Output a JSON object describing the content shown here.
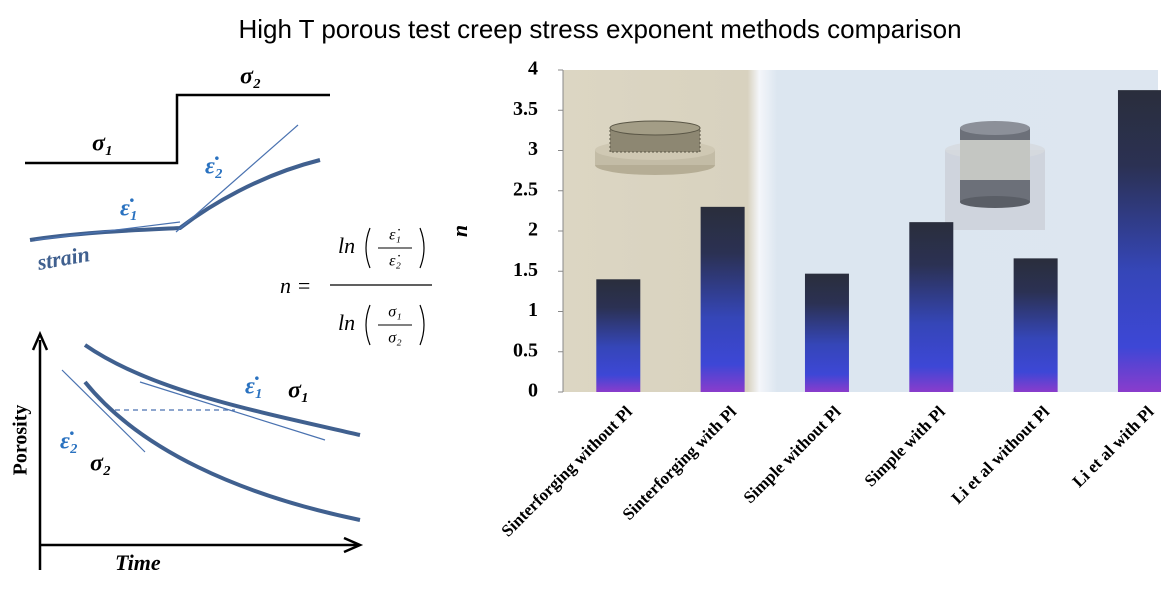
{
  "chart_data": {
    "type": "bar",
    "title": "High T porous test creep stress exponent methods comparison",
    "y_label": "n",
    "categories": [
      "Sinterforging without Pl",
      "Sinterforging with Pl",
      "Simple without Pl",
      "Simple with Pl",
      "Li et al without Pl",
      "Li et al with Pl"
    ],
    "values": [
      1.4,
      2.3,
      1.47,
      2.11,
      1.66,
      3.75
    ],
    "ylim": [
      0,
      4
    ],
    "yticks": [
      0,
      0.5,
      1,
      1.5,
      2,
      2.5,
      3,
      3.5,
      4
    ],
    "grid": false
  },
  "diagram": {
    "step": {
      "sigma_high": "σ₂",
      "sigma_low": "σ₁",
      "rate_low": "ε̇₁",
      "rate_high": "ε̇₂",
      "curve_label": "strain"
    },
    "formula": {
      "lhs": "n =",
      "ln": "ln",
      "num_top": "ε̇₁",
      "num_bottom": "ε̇₂",
      "den_top": "σ₁",
      "den_bottom": "σ₂"
    },
    "porosity": {
      "y_label": "Porosity",
      "x_label": "Time",
      "rate_1": "ε̇₁",
      "sigma_1": "σ₁",
      "rate_2": "ε̇₂",
      "sigma_2": "σ₂"
    }
  }
}
